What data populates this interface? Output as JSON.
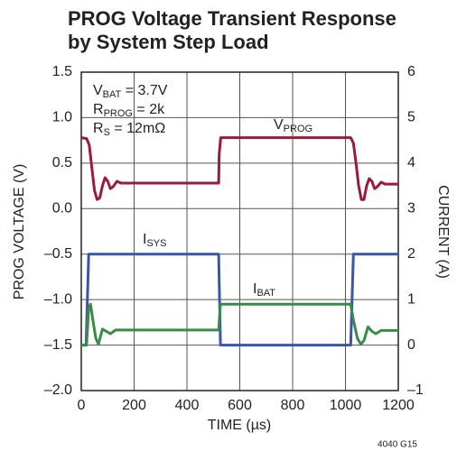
{
  "chart_data": {
    "type": "line",
    "title": [
      "PROG Voltage Transient Response",
      "by System Step Load"
    ],
    "xlabel": "TIME (µs)",
    "ylabel": "PROG VOLTAGE (V)",
    "y2label": "CURRENT (A)",
    "footnote": "4040 G15",
    "annotations": [
      {
        "text": "V",
        "sub": "BAT",
        "after": " = 3.7V"
      },
      {
        "text": "R",
        "sub": "PROG",
        "after": " = 2k"
      },
      {
        "text": "R",
        "sub": "S",
        "after": " = 12mΩ"
      }
    ],
    "xlim": [
      0,
      1200
    ],
    "xticks": [
      0,
      200,
      400,
      600,
      800,
      1000,
      1200
    ],
    "ylim": [
      -2,
      1.5
    ],
    "yticks": [
      {
        "value": 1.5,
        "label": "1.5"
      },
      {
        "value": 1,
        "label": "1.0"
      },
      0.5,
      {
        "value": 0,
        "label": "0.0"
      },
      {
        "value": -0.5,
        "label": "–0.5"
      },
      {
        "value": -1,
        "label": "–1.0"
      },
      {
        "value": -1.5,
        "label": "–1.5"
      },
      {
        "value": -2,
        "label": "–2.0"
      }
    ],
    "y2lim": [
      -1,
      6
    ],
    "y2ticks": [
      {
        "value": -1,
        "label": "–1"
      },
      0,
      1,
      2,
      3,
      4,
      5,
      6
    ],
    "grid": true,
    "series": [
      {
        "name": "VPROG",
        "color": "#9b1b3a",
        "x": [
          0,
          20,
          30,
          40,
          50,
          60,
          70,
          80,
          90,
          100,
          110,
          120,
          135,
          150,
          520,
          522,
          528,
          1020,
          1030,
          1040,
          1050,
          1060,
          1070,
          1080,
          1090,
          1100,
          1110,
          1120,
          1135,
          1150,
          1200
        ],
        "values": [
          0.78,
          0.77,
          0.7,
          0.45,
          0.2,
          0.1,
          0.12,
          0.25,
          0.34,
          0.3,
          0.22,
          0.24,
          0.3,
          0.28,
          0.28,
          0.6,
          0.78,
          0.78,
          0.72,
          0.5,
          0.25,
          0.1,
          0.1,
          0.25,
          0.33,
          0.3,
          0.22,
          0.24,
          0.29,
          0.27,
          0.27
        ]
      },
      {
        "name": "ISYS",
        "color": "#3a56a8",
        "axis": "y2",
        "x": [
          0,
          18,
          28,
          520,
          527,
          1020,
          1030,
          1200
        ],
        "values": [
          0,
          0,
          2,
          2,
          0,
          0,
          2,
          2
        ]
      },
      {
        "name": "IBAT",
        "color": "#3a8a4a",
        "axis": "y2",
        "x": [
          0,
          20,
          28,
          35,
          45,
          55,
          65,
          80,
          95,
          110,
          130,
          520,
          527,
          1020,
          1030,
          1045,
          1058,
          1070,
          1085,
          1100,
          1115,
          1135,
          1200
        ],
        "values": [
          0,
          0,
          0.8,
          0.9,
          0.5,
          0.15,
          0.02,
          0.35,
          0.3,
          0.25,
          0.33,
          0.33,
          0.9,
          0.9,
          0.55,
          0.15,
          0.02,
          0.1,
          0.4,
          0.3,
          0.25,
          0.32,
          0.32
        ]
      }
    ]
  }
}
